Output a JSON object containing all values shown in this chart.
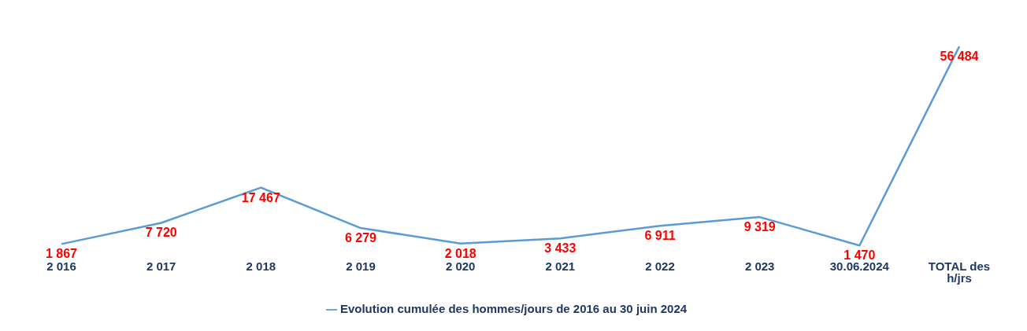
{
  "chart_data": {
    "type": "line",
    "categories": [
      "2 016",
      "2 017",
      "2 018",
      "2 019",
      "2 020",
      "2 021",
      "2 022",
      "2 023",
      "30.06.2024",
      "TOTAL des h/jrs"
    ],
    "series": [
      {
        "name": "Evolution cumulée des hommes/jours de 2016 au 30 juin 2024",
        "color": "#5b9bd5",
        "values": [
          1867,
          7720,
          17467,
          6279,
          2018,
          3433,
          6911,
          9319,
          1470,
          56484
        ],
        "value_labels": [
          "1 867",
          "7 720",
          "17 467",
          "6 279",
          "2 018",
          "3 433",
          "6 911",
          "9 319",
          "1 470",
          "56 484"
        ]
      }
    ],
    "legend": "bottom",
    "grid": false,
    "marker": "none",
    "line_style": "solid"
  }
}
